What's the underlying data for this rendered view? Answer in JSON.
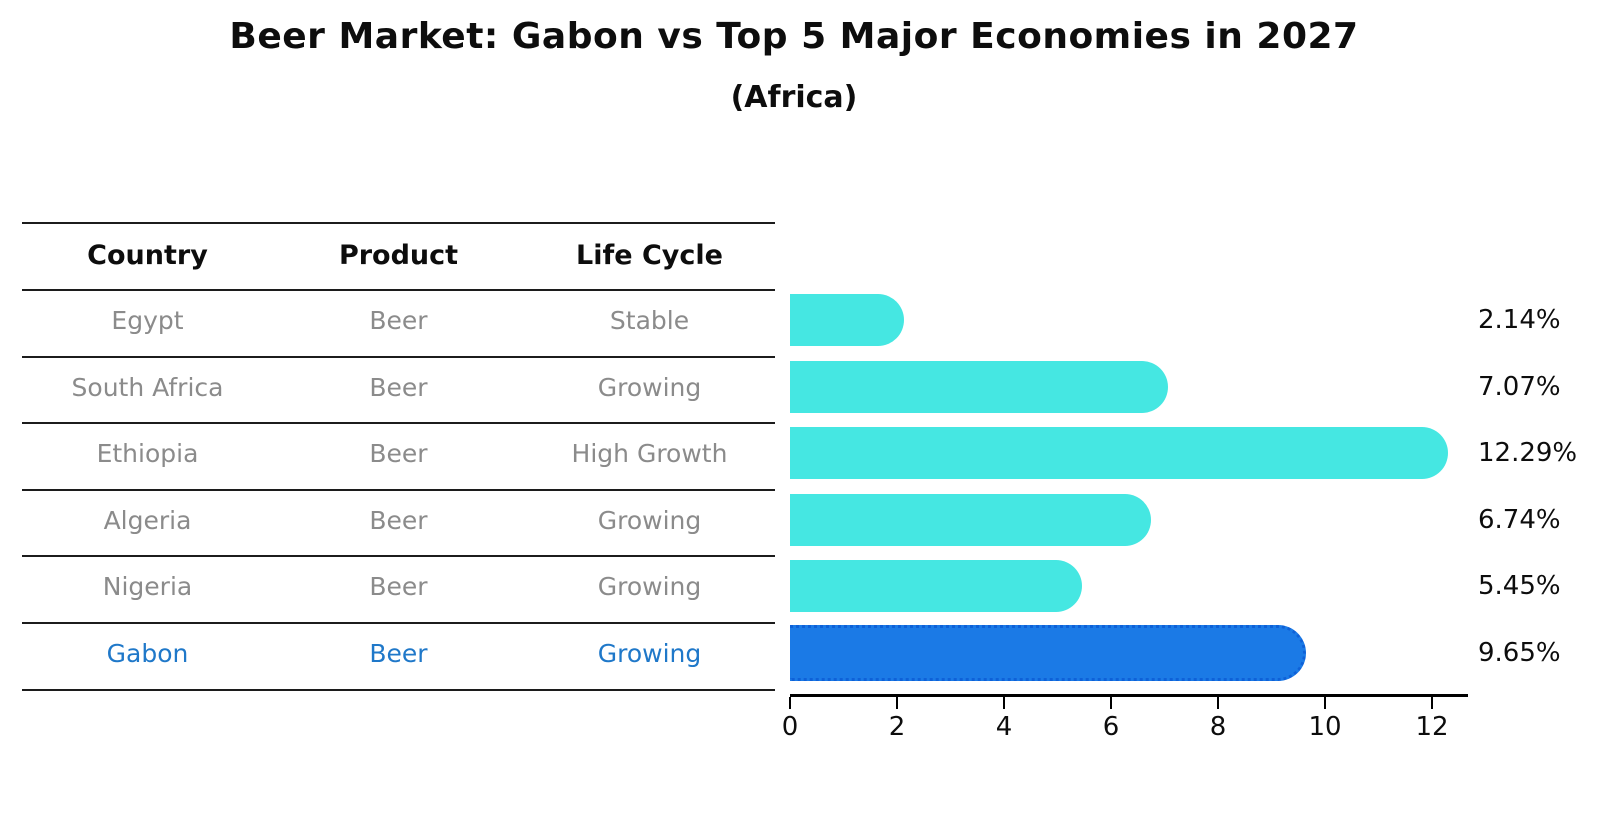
{
  "title": "Beer Market: Gabon vs Top 5 Major Economies in 2027",
  "subtitle": "(Africa)",
  "table": {
    "headers": [
      "Country",
      "Product",
      "Life Cycle"
    ],
    "rows": [
      {
        "country": "Egypt",
        "product": "Beer",
        "life_cycle": "Stable"
      },
      {
        "country": "South Africa",
        "product": "Beer",
        "life_cycle": "Growing"
      },
      {
        "country": "Ethiopia",
        "product": "Beer",
        "life_cycle": "High Growth"
      },
      {
        "country": "Algeria",
        "product": "Beer",
        "life_cycle": "Growing"
      },
      {
        "country": "Nigeria",
        "product": "Beer",
        "life_cycle": "Growing"
      },
      {
        "country": "Gabon",
        "product": "Beer",
        "life_cycle": "Growing"
      }
    ]
  },
  "chart_data": {
    "type": "bar",
    "orientation": "horizontal",
    "title": "Beer Market: Gabon vs Top 5 Major Economies in 2027",
    "subtitle": "(Africa)",
    "categories": [
      "Egypt",
      "South Africa",
      "Ethiopia",
      "Algeria",
      "Nigeria",
      "Gabon"
    ],
    "values": [
      2.14,
      7.07,
      12.29,
      6.74,
      5.45,
      9.65
    ],
    "value_labels": [
      "2.14%",
      "7.07%",
      "12.29%",
      "6.74%",
      "5.45%",
      "9.65%"
    ],
    "x_ticks": [
      "0",
      "2",
      "4",
      "6",
      "8",
      "10",
      "12"
    ],
    "xlim": [
      0,
      12.67
    ],
    "grid": false,
    "legend": false,
    "highlight_category": "Gabon",
    "bar_color": "#45e7e2",
    "highlight_bar_color": "#1b7ae6",
    "highlight_border_color": "#0e61d8",
    "highlight_text_color": "#1f78c9",
    "row_text_color": "#8b8b8b",
    "text_color": "#0d0d0d"
  }
}
